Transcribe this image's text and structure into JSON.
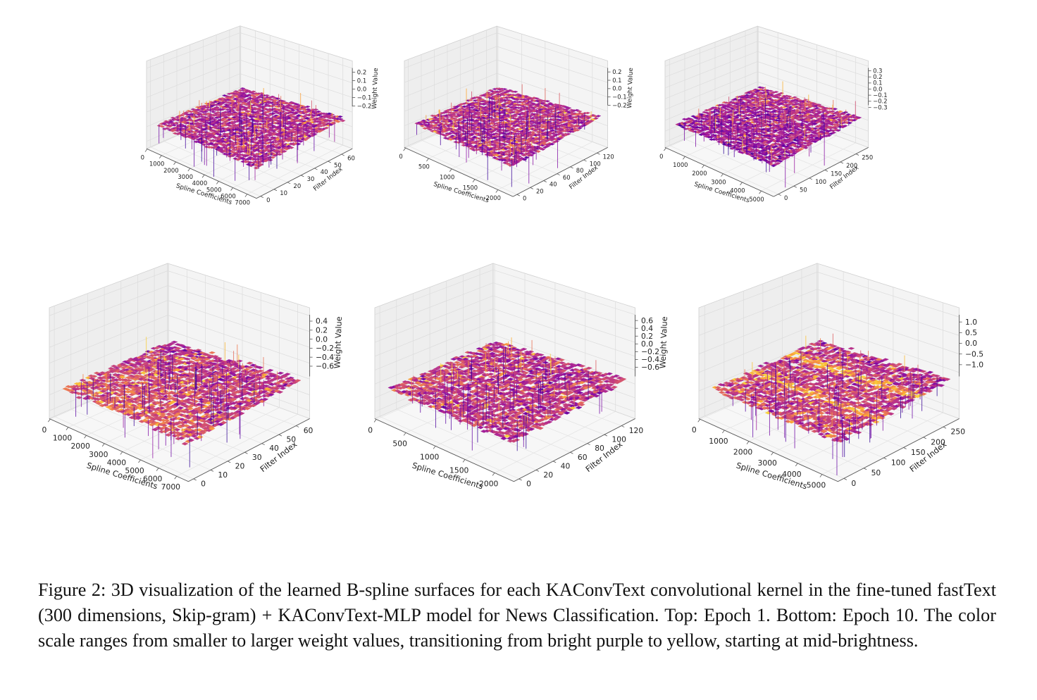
{
  "caption": "Figure 2: 3D visualization of the learned B-spline surfaces for each KAConvText convolutional kernel in the fine-tuned fastText (300 dimensions, Skip-gram) + KAConvText-MLP model for News Classification. Top: Epoch 1. Bottom: Epoch 10. The color scale ranges from smaller to larger weight values, transitioning from bright purple to yellow, starting at mid-brightness.",
  "colormap": [
    "#2a0593",
    "#5b02a3",
    "#8a0da3",
    "#b12a90",
    "#d24f71",
    "#ec7853",
    "#fca636",
    "#f7d13d"
  ],
  "chart_data": [
    {
      "type": "surface3d",
      "row": "top",
      "xlabel": "Spline Coefficients",
      "ylabel": "Filter Index",
      "zlabel": "Weight Value",
      "xlim": [
        0,
        7200
      ],
      "ylim": [
        0,
        64
      ],
      "zlim": [
        -0.25,
        0.25
      ],
      "xticks": [
        "0",
        "1000",
        "2000",
        "3000",
        "4000",
        "5000",
        "6000",
        "7000"
      ],
      "yticks": [
        "0",
        "10",
        "20",
        "30",
        "40",
        "50",
        "60"
      ],
      "zticks": [
        "0.2",
        "0.1",
        "0.0",
        "−0.1",
        "−0.2"
      ],
      "value_range": [
        -0.2,
        0.2
      ]
    },
    {
      "type": "surface3d",
      "row": "top",
      "xlabel": "Spline Coefficients",
      "ylabel": "Filter Index",
      "zlabel": "Weight Value",
      "xlim": [
        0,
        2100
      ],
      "ylim": [
        0,
        128
      ],
      "zlim": [
        -0.25,
        0.25
      ],
      "xticks": [
        "0",
        "500",
        "1000",
        "1500",
        "2000"
      ],
      "yticks": [
        "0",
        "20",
        "40",
        "60",
        "80",
        "100",
        "120"
      ],
      "zticks": [
        "0.2",
        "0.1",
        "0.0",
        "−0.1",
        "−0.2"
      ],
      "value_range": [
        -0.2,
        0.2
      ]
    },
    {
      "type": "surface3d",
      "row": "top",
      "xlabel": "Spline Coefficients",
      "ylabel": "Filter Index",
      "zlabel": "",
      "xlim": [
        0,
        5100
      ],
      "ylim": [
        0,
        256
      ],
      "zlim": [
        -0.35,
        0.35
      ],
      "xticks": [
        "0",
        "1000",
        "2000",
        "3000",
        "4000",
        "5000"
      ],
      "yticks": [
        "0",
        "50",
        "100",
        "150",
        "200",
        "250"
      ],
      "zticks": [
        "0.3",
        "0.2",
        "0.1",
        "0.0",
        "−0.1",
        "−0.2",
        "−0.3"
      ],
      "value_range": [
        -0.3,
        0.3
      ]
    },
    {
      "type": "surface3d",
      "row": "bottom",
      "xlabel": "Spline Coefficients",
      "ylabel": "Filter Index",
      "zlabel": "Weight Value",
      "xlim": [
        0,
        7200
      ],
      "ylim": [
        0,
        64
      ],
      "zlim": [
        -0.7,
        0.5
      ],
      "xticks": [
        "0",
        "1000",
        "2000",
        "3000",
        "4000",
        "5000",
        "6000",
        "7000"
      ],
      "yticks": [
        "0",
        "10",
        "20",
        "30",
        "40",
        "50",
        "60"
      ],
      "zticks": [
        "0.4",
        "0.2",
        "0.0",
        "−0.2",
        "−0.4",
        "−0.6"
      ],
      "value_range": [
        -0.6,
        0.4
      ]
    },
    {
      "type": "surface3d",
      "row": "bottom",
      "xlabel": "Spline Coefficients",
      "ylabel": "Filter Index",
      "zlabel": "Weight Value",
      "xlim": [
        0,
        2100
      ],
      "ylim": [
        0,
        128
      ],
      "zlim": [
        -0.7,
        0.7
      ],
      "xticks": [
        "0",
        "500",
        "1000",
        "1500",
        "2000"
      ],
      "yticks": [
        "0",
        "20",
        "40",
        "60",
        "80",
        "100",
        "120"
      ],
      "zticks": [
        "0.6",
        "0.4",
        "0.2",
        "0.0",
        "−0.2",
        "−0.4",
        "−0.6"
      ],
      "value_range": [
        -0.6,
        0.6
      ]
    },
    {
      "type": "surface3d",
      "row": "bottom",
      "xlabel": "Spline Coefficients",
      "ylabel": "Filter Index",
      "zlabel": "",
      "xlim": [
        0,
        5100
      ],
      "ylim": [
        0,
        256
      ],
      "zlim": [
        -1.2,
        1.2
      ],
      "xticks": [
        "0",
        "1000",
        "2000",
        "3000",
        "4000",
        "5000"
      ],
      "yticks": [
        "0",
        "50",
        "100",
        "150",
        "200",
        "250"
      ],
      "zticks": [
        "1.0",
        "0.5",
        "0.0",
        "−0.5",
        "−1.0"
      ],
      "value_range": [
        -1.0,
        1.0
      ]
    }
  ]
}
